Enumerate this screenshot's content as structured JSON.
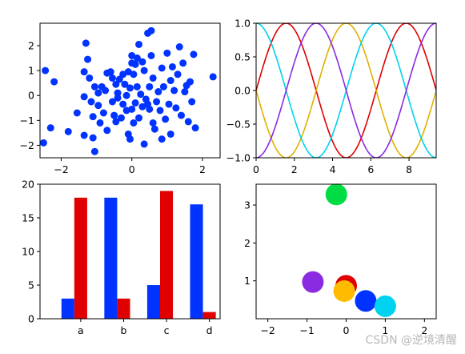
{
  "colors": {
    "blue": "#0033ff",
    "red": "#e00000",
    "green": "#00dd44",
    "orange": "#ffbb00",
    "purple": "#8a2be2",
    "cyan": "#00d2ef",
    "goldenrod": "#e0b000"
  },
  "watermark": "CSDN @逆境清醒",
  "chart_data": [
    {
      "type": "scatter",
      "xlim": [
        -2.6,
        2.5
      ],
      "ylim": [
        -2.5,
        2.9
      ],
      "xticks": [
        -2,
        0,
        2
      ],
      "yticks": [
        -2,
        -1,
        0,
        1,
        2
      ],
      "color": "#0033ff",
      "points": [
        [
          -2.45,
          1.0
        ],
        [
          -2.3,
          -1.3
        ],
        [
          -2.5,
          -1.9
        ],
        [
          -2.2,
          0.55
        ],
        [
          -1.8,
          -1.45
        ],
        [
          -1.55,
          -0.7
        ],
        [
          -1.35,
          0.95
        ],
        [
          -1.35,
          -1.6
        ],
        [
          -1.3,
          2.1
        ],
        [
          -1.25,
          1.45
        ],
        [
          -1.2,
          0.7
        ],
        [
          -1.15,
          -0.25
        ],
        [
          -1.1,
          -0.85
        ],
        [
          -1.1,
          -1.7
        ],
        [
          -1.05,
          -2.25
        ],
        [
          -1.05,
          0.35
        ],
        [
          -0.95,
          -0.4
        ],
        [
          -0.95,
          0.1
        ],
        [
          -0.9,
          -1.1
        ],
        [
          -0.85,
          0.35
        ],
        [
          -0.8,
          -0.7
        ],
        [
          -0.75,
          0.2
        ],
        [
          -0.7,
          -1.4
        ],
        [
          -0.7,
          0.9
        ],
        [
          -0.6,
          0.95
        ],
        [
          -0.55,
          0.7
        ],
        [
          -0.55,
          -0.25
        ],
        [
          -0.5,
          -0.8
        ],
        [
          -0.45,
          -1.05
        ],
        [
          -0.45,
          0.45
        ],
        [
          -0.4,
          -0.1
        ],
        [
          -0.4,
          0.1
        ],
        [
          -0.35,
          0.65
        ],
        [
          -0.3,
          -0.9
        ],
        [
          -0.25,
          0.85
        ],
        [
          -0.25,
          -0.35
        ],
        [
          -0.2,
          0.45
        ],
        [
          -0.15,
          -0.6
        ],
        [
          -0.15,
          0.0
        ],
        [
          -0.1,
          -1.55
        ],
        [
          -0.05,
          -1.75
        ],
        [
          -0.05,
          0.3
        ],
        [
          0.0,
          1.6
        ],
        [
          0.0,
          -0.55
        ],
        [
          0.05,
          -1.1
        ],
        [
          0.05,
          0.85
        ],
        [
          0.1,
          1.25
        ],
        [
          0.1,
          -0.3
        ],
        [
          0.15,
          0.35
        ],
        [
          0.2,
          2.05
        ],
        [
          0.2,
          -0.9
        ],
        [
          0.25,
          0.05
        ],
        [
          0.3,
          -0.45
        ],
        [
          0.3,
          1.35
        ],
        [
          0.35,
          -1.95
        ],
        [
          0.35,
          1.0
        ],
        [
          0.4,
          -0.15
        ],
        [
          0.45,
          2.5
        ],
        [
          0.5,
          -0.55
        ],
        [
          0.5,
          0.35
        ],
        [
          0.55,
          1.6
        ],
        [
          0.55,
          2.6
        ],
        [
          0.6,
          -1.1
        ],
        [
          0.6,
          0.7
        ],
        [
          0.65,
          -1.35
        ],
        [
          0.7,
          -0.25
        ],
        [
          0.75,
          0.15
        ],
        [
          0.8,
          -0.6
        ],
        [
          0.85,
          1.1
        ],
        [
          0.85,
          -1.75
        ],
        [
          0.9,
          0.35
        ],
        [
          0.95,
          -0.95
        ],
        [
          1.0,
          1.7
        ],
        [
          1.05,
          -0.35
        ],
        [
          1.1,
          0.6
        ],
        [
          1.1,
          -1.55
        ],
        [
          1.15,
          1.15
        ],
        [
          1.2,
          0.2
        ],
        [
          1.25,
          -0.5
        ],
        [
          1.3,
          0.85
        ],
        [
          1.35,
          1.95
        ],
        [
          1.4,
          -0.8
        ],
        [
          1.45,
          1.3
        ],
        [
          1.5,
          0.15
        ],
        [
          1.55,
          0.4
        ],
        [
          1.6,
          -1.05
        ],
        [
          1.65,
          0.55
        ],
        [
          1.7,
          -0.25
        ],
        [
          1.75,
          1.65
        ],
        [
          1.8,
          -1.3
        ],
        [
          2.3,
          0.75
        ],
        [
          -1.35,
          -0.05
        ],
        [
          0.0,
          1.3
        ],
        [
          0.15,
          1.5
        ],
        [
          -0.1,
          0.95
        ],
        [
          0.45,
          -0.35
        ]
      ]
    },
    {
      "type": "line",
      "xlim": [
        0,
        9.42
      ],
      "ylim": [
        -1.0,
        1.0
      ],
      "xticks": [
        0,
        2,
        4,
        6,
        8
      ],
      "yticks": [
        -1.0,
        -0.5,
        0.0,
        0.5,
        1.0
      ],
      "series": [
        {
          "function": "sin(x)",
          "color": "#e00000"
        },
        {
          "function": "-sin(x)",
          "color": "#e0b000"
        },
        {
          "function": "cos(x)",
          "color": "#00d2ef"
        },
        {
          "function": "-cos(x)",
          "color": "#8a2be2"
        }
      ]
    },
    {
      "type": "bar",
      "categories": [
        "a",
        "b",
        "c",
        "d"
      ],
      "ylim": [
        0,
        20
      ],
      "yticks": [
        0,
        5,
        10,
        15,
        20
      ],
      "series": [
        {
          "values": [
            3,
            18,
            5,
            17
          ],
          "color": "#0033ff"
        },
        {
          "values": [
            18,
            3,
            19,
            1
          ],
          "color": "#e00000"
        }
      ]
    },
    {
      "type": "scatter",
      "xlim": [
        -2.3,
        2.3
      ],
      "ylim": [
        0,
        3.55
      ],
      "xticks": [
        -2,
        -1,
        0,
        1,
        2
      ],
      "yticks": [
        1,
        2,
        3
      ],
      "points": [
        {
          "x": -0.25,
          "y": 3.28,
          "color": "#00dd44"
        },
        {
          "x": -0.85,
          "y": 0.97,
          "color": "#8a2be2"
        },
        {
          "x": 0.0,
          "y": 0.87,
          "color": "#e00000"
        },
        {
          "x": -0.05,
          "y": 0.73,
          "color": "#ffbb00"
        },
        {
          "x": 0.5,
          "y": 0.47,
          "color": "#0033ff"
        },
        {
          "x": 1.0,
          "y": 0.33,
          "color": "#00d2ef"
        }
      ]
    }
  ]
}
